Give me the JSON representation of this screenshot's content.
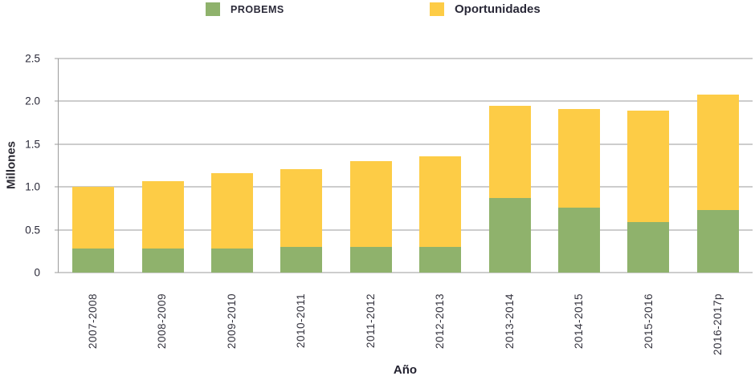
{
  "legend": [
    {
      "label": "PROBEMS",
      "color": "#8FB26C"
    },
    {
      "label": "Oportunidades",
      "color": "#FDCC46"
    }
  ],
  "chart_data": {
    "type": "bar",
    "stacked": true,
    "title": "",
    "xlabel": "Año",
    "ylabel": "Millones",
    "categories": [
      "2007-2008",
      "2008-2009",
      "2009-2010",
      "2010-2011",
      "2011-2012",
      "2012-2013",
      "2013-2014",
      "2014-2015",
      "2015-2016",
      "2016-2017p"
    ],
    "series": [
      {
        "name": "PROBEMS",
        "color": "#8FB26C",
        "values": [
          0.28,
          0.28,
          0.28,
          0.3,
          0.3,
          0.3,
          0.87,
          0.76,
          0.59,
          0.73
        ]
      },
      {
        "name": "Oportunidades",
        "color": "#FDCC46",
        "values": [
          0.72,
          0.79,
          0.88,
          0.91,
          1.0,
          1.06,
          1.08,
          1.15,
          1.3,
          1.35
        ]
      }
    ],
    "totals": [
      1.0,
      1.07,
      1.16,
      1.21,
      1.3,
      1.36,
      1.95,
      1.91,
      1.89,
      2.08
    ],
    "ylim": [
      0,
      2.5
    ],
    "yticks": [
      "0",
      "0.5",
      "1.0",
      "1.5",
      "2.0",
      "2.5"
    ],
    "grid": true,
    "legend_position": "top-center"
  },
  "colors": {
    "grid": "#9B9B9B",
    "text": "#2A2938",
    "background": "#FFFFFF"
  }
}
